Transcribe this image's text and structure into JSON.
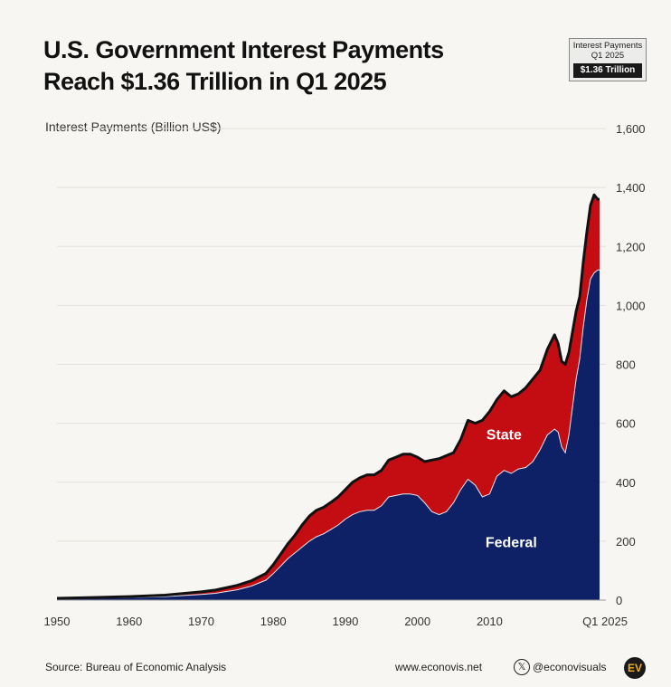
{
  "title_line1": "U.S. Government Interest Payments",
  "title_line2": "Reach $1.36 Trillion in Q1 2025",
  "badge": {
    "line1": "Interest Payments",
    "line2": "Q1 2025",
    "value": "$1.36 Trillion"
  },
  "footer": {
    "source": "Source: Bureau of Economic Analysis",
    "website": "www.econovis.net",
    "x_icon": "x-logo-icon",
    "handle": "@econovisuals",
    "logo_text": "EV"
  },
  "colors": {
    "federal": "#0f2166",
    "state": "#c40d12",
    "total_line": "#111111",
    "background": "#f7f6f2",
    "grid": "#e2e0da"
  },
  "chart_data": {
    "type": "area",
    "stacked": true,
    "ylabel": "Interest Payments (Billion US$)",
    "ylim": [
      0,
      1600
    ],
    "yticks": [
      0,
      200,
      400,
      600,
      800,
      1000,
      1200,
      1400,
      1600
    ],
    "ytick_labels": [
      "0",
      "200",
      "400",
      "600",
      "800",
      "1,000",
      "1,200",
      "1,400",
      "1,600"
    ],
    "xlim": [
      1950,
      2025.25
    ],
    "xticks": [
      1950,
      1960,
      1970,
      1980,
      1990,
      2000,
      2010,
      2025.25
    ],
    "xtick_labels": [
      "1950",
      "1960",
      "1970",
      "1980",
      "1990",
      "2000",
      "2010",
      "Q1 2025"
    ],
    "grid": true,
    "x": [
      1950,
      1955,
      1960,
      1965,
      1970,
      1972,
      1975,
      1977,
      1979,
      1980,
      1981,
      1982,
      1983,
      1984,
      1985,
      1986,
      1987,
      1988,
      1989,
      1990,
      1991,
      1992,
      1993,
      1994,
      1995,
      1996,
      1997,
      1998,
      1999,
      2000,
      2001,
      2002,
      2003,
      2004,
      2005,
      2006,
      2007,
      2008,
      2009,
      2010,
      2011,
      2012,
      2013,
      2014,
      2015,
      2016,
      2017,
      2018,
      2019,
      2019.5,
      2020,
      2020.5,
      2021,
      2022,
      2022.5,
      2023,
      2023.5,
      2024,
      2024.5,
      2025,
      2025.25
    ],
    "series": [
      {
        "name": "Federal",
        "values": [
          5,
          7,
          9,
          12,
          19,
          23,
          35,
          48,
          68,
          90,
          115,
          140,
          160,
          180,
          200,
          215,
          225,
          240,
          255,
          275,
          290,
          300,
          305,
          305,
          320,
          350,
          355,
          360,
          360,
          355,
          330,
          300,
          290,
          300,
          330,
          375,
          410,
          390,
          350,
          360,
          420,
          440,
          430,
          445,
          450,
          470,
          510,
          560,
          580,
          570,
          520,
          500,
          560,
          750,
          820,
          930,
          1020,
          1090,
          1110,
          1120,
          1120
        ]
      },
      {
        "name": "State",
        "values": [
          1,
          2,
          3,
          5,
          9,
          11,
          15,
          18,
          23,
          30,
          40,
          50,
          60,
          75,
          85,
          90,
          90,
          92,
          95,
          100,
          110,
          115,
          120,
          120,
          120,
          125,
          130,
          135,
          135,
          130,
          140,
          175,
          190,
          190,
          170,
          170,
          200,
          210,
          260,
          280,
          260,
          270,
          260,
          255,
          270,
          280,
          270,
          290,
          320,
          300,
          290,
          300,
          280,
          230,
          210,
          220,
          230,
          250,
          265,
          240,
          240
        ]
      }
    ],
    "annotations": [
      {
        "text": "State",
        "x": 2012,
        "y": 545
      },
      {
        "text": "Federal",
        "x": 2013,
        "y": 180
      }
    ]
  }
}
